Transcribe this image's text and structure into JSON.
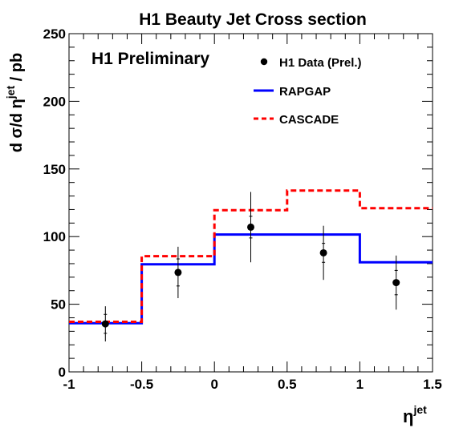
{
  "chart_data": {
    "type": "line",
    "title": "H1 Beauty Jet Cross section",
    "annotation": "H1 Preliminary",
    "ylabel": "d σ/d η",
    "ylabel_sup": "jet",
    "ylabel_tail": " / pb",
    "xlabel": "η",
    "xlabel_sup": "jet",
    "xlim": [
      -1,
      1.5
    ],
    "ylim": [
      0,
      250
    ],
    "x_ticks": [
      -1,
      -0.5,
      0,
      0.5,
      1,
      1.5
    ],
    "x_tick_labels": [
      "-1",
      "-0.5",
      "0",
      "0.5",
      "1",
      "1.5"
    ],
    "y_ticks": [
      0,
      50,
      100,
      150,
      200,
      250
    ],
    "y_tick_labels": [
      "0",
      "50",
      "100",
      "150",
      "200",
      "250"
    ],
    "legend_position": "top-right",
    "data_points": {
      "name": "H1 Data (Prel.)",
      "x": [
        -0.75,
        -0.25,
        0.25,
        0.75,
        1.25
      ],
      "y": [
        35.5,
        73.5,
        107,
        88,
        66
      ],
      "stat_err": [
        7,
        10,
        8,
        7,
        9
      ],
      "tot_err": [
        13,
        19,
        26,
        20,
        20
      ]
    },
    "series": [
      {
        "name": "RAPGAP",
        "style": "solid",
        "color": "#0000ff",
        "bin_edges": [
          -1,
          -0.5,
          0,
          0.5,
          1,
          1.5
        ],
        "values": [
          36,
          79.5,
          101.5,
          101.5,
          81
        ]
      },
      {
        "name": "CASCADE",
        "style": "dashed",
        "color": "#ff0000",
        "bin_edges": [
          -1,
          -0.5,
          0,
          0.5,
          1,
          1.5
        ],
        "values": [
          37,
          85.5,
          119.5,
          134,
          121
        ]
      }
    ]
  }
}
